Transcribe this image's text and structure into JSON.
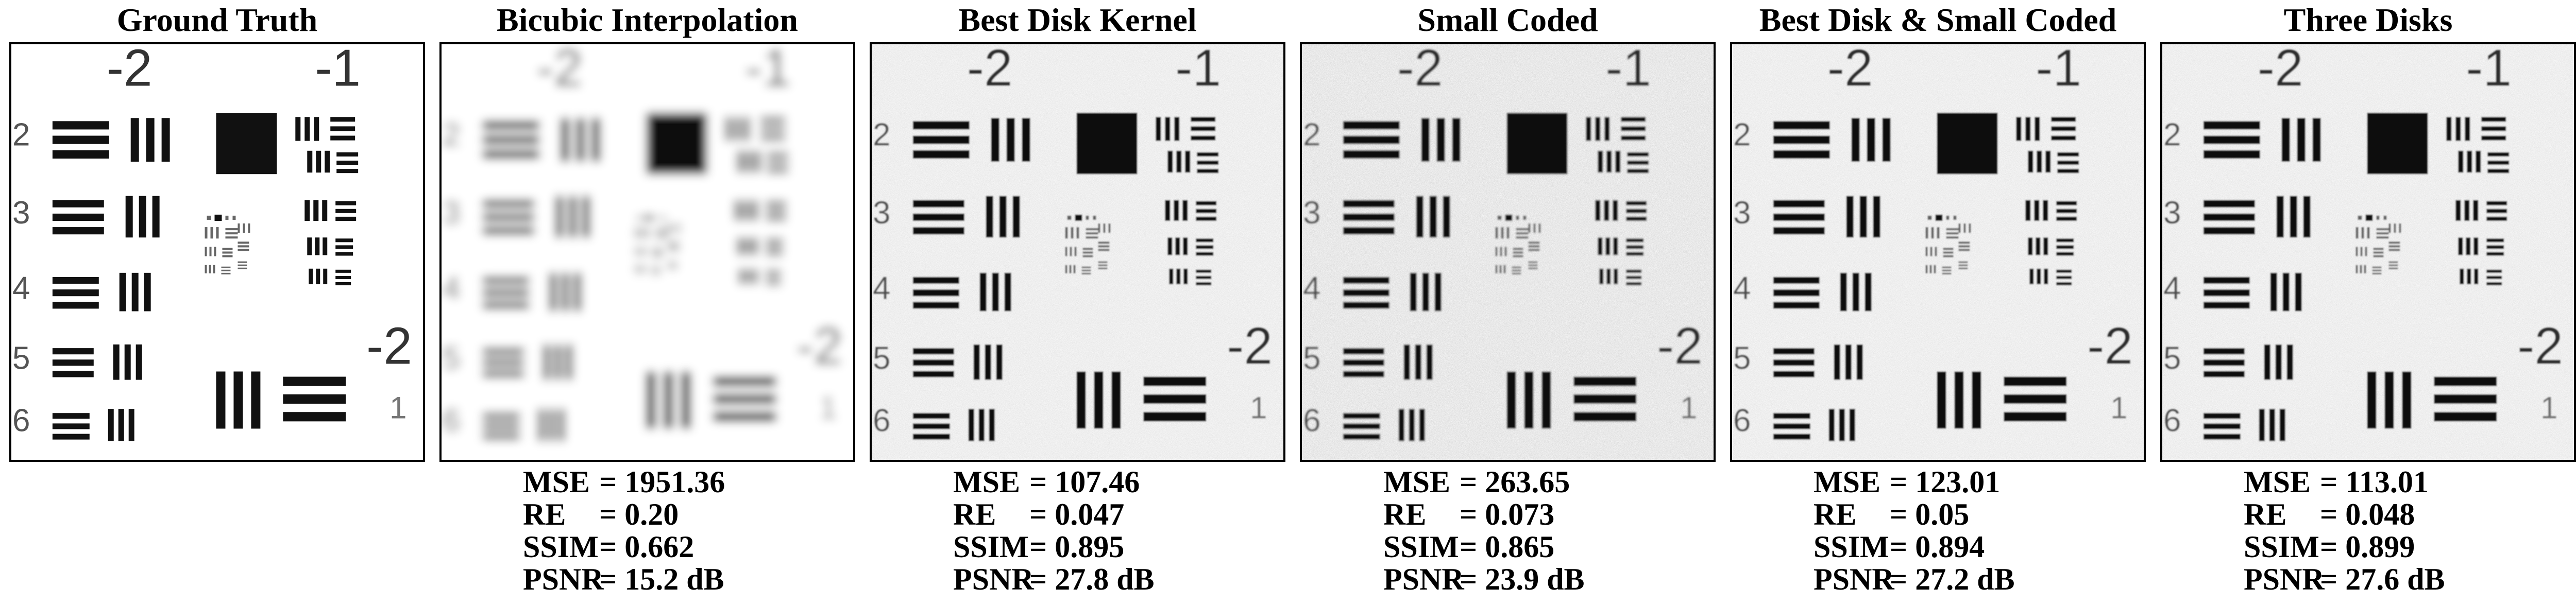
{
  "panels": [
    {
      "id": "gt",
      "title": "Ground Truth",
      "quality": "sharp",
      "metrics": null
    },
    {
      "id": "bicubic",
      "title": "Bicubic Interpolation",
      "quality": "blurry",
      "metrics": {
        "mse_label": "MSE",
        "mse": "= 1951.36",
        "re_label": "RE",
        "re": "= 0.20",
        "ssim_label": "SSIM",
        "ssim": "= 0.662",
        "psnr_label": "PSNR",
        "psnr": "= 15.2 dB"
      }
    },
    {
      "id": "bestdisk",
      "title": "Best Disk Kernel",
      "quality": "noisy",
      "metrics": {
        "mse_label": "MSE",
        "mse": "= 107.46",
        "re_label": "RE",
        "re": "= 0.047",
        "ssim_label": "SSIM",
        "ssim": "= 0.895",
        "psnr_label": "PSNR",
        "psnr": "= 27.8 dB"
      }
    },
    {
      "id": "smallcoded",
      "title": "Small Coded",
      "quality": "noisy",
      "metrics": {
        "mse_label": "MSE",
        "mse": "= 263.65",
        "re_label": "RE",
        "re": "= 0.073",
        "ssim_label": "SSIM",
        "ssim": "= 0.865",
        "psnr_label": "PSNR",
        "psnr": "= 23.9 dB"
      }
    },
    {
      "id": "bestdiskcoded",
      "title": "Best Disk & Small Coded",
      "quality": "noisy",
      "metrics": {
        "mse_label": "MSE",
        "mse": "= 123.01",
        "re_label": "RE",
        "re": "= 0.05",
        "ssim_label": "SSIM",
        "ssim": "= 0.894",
        "psnr_label": "PSNR",
        "psnr": "= 27.2 dB"
      }
    },
    {
      "id": "threedisks",
      "title": "Three Disks",
      "quality": "noisy",
      "metrics": {
        "mse_label": "MSE",
        "mse": "= 113.01",
        "re_label": "RE",
        "re": "= 0.048",
        "ssim_label": "SSIM",
        "ssim": "= 0.899",
        "psnr_label": "PSNR",
        "psnr": "= 27.6 dB"
      }
    }
  ],
  "target_labels": {
    "group_top_left": "-2",
    "group_top_right": "-1",
    "group_bottom_right": "-2",
    "row_numbers": [
      "2",
      "3",
      "4",
      "5",
      "6"
    ],
    "bottom_right_digit": "1"
  }
}
